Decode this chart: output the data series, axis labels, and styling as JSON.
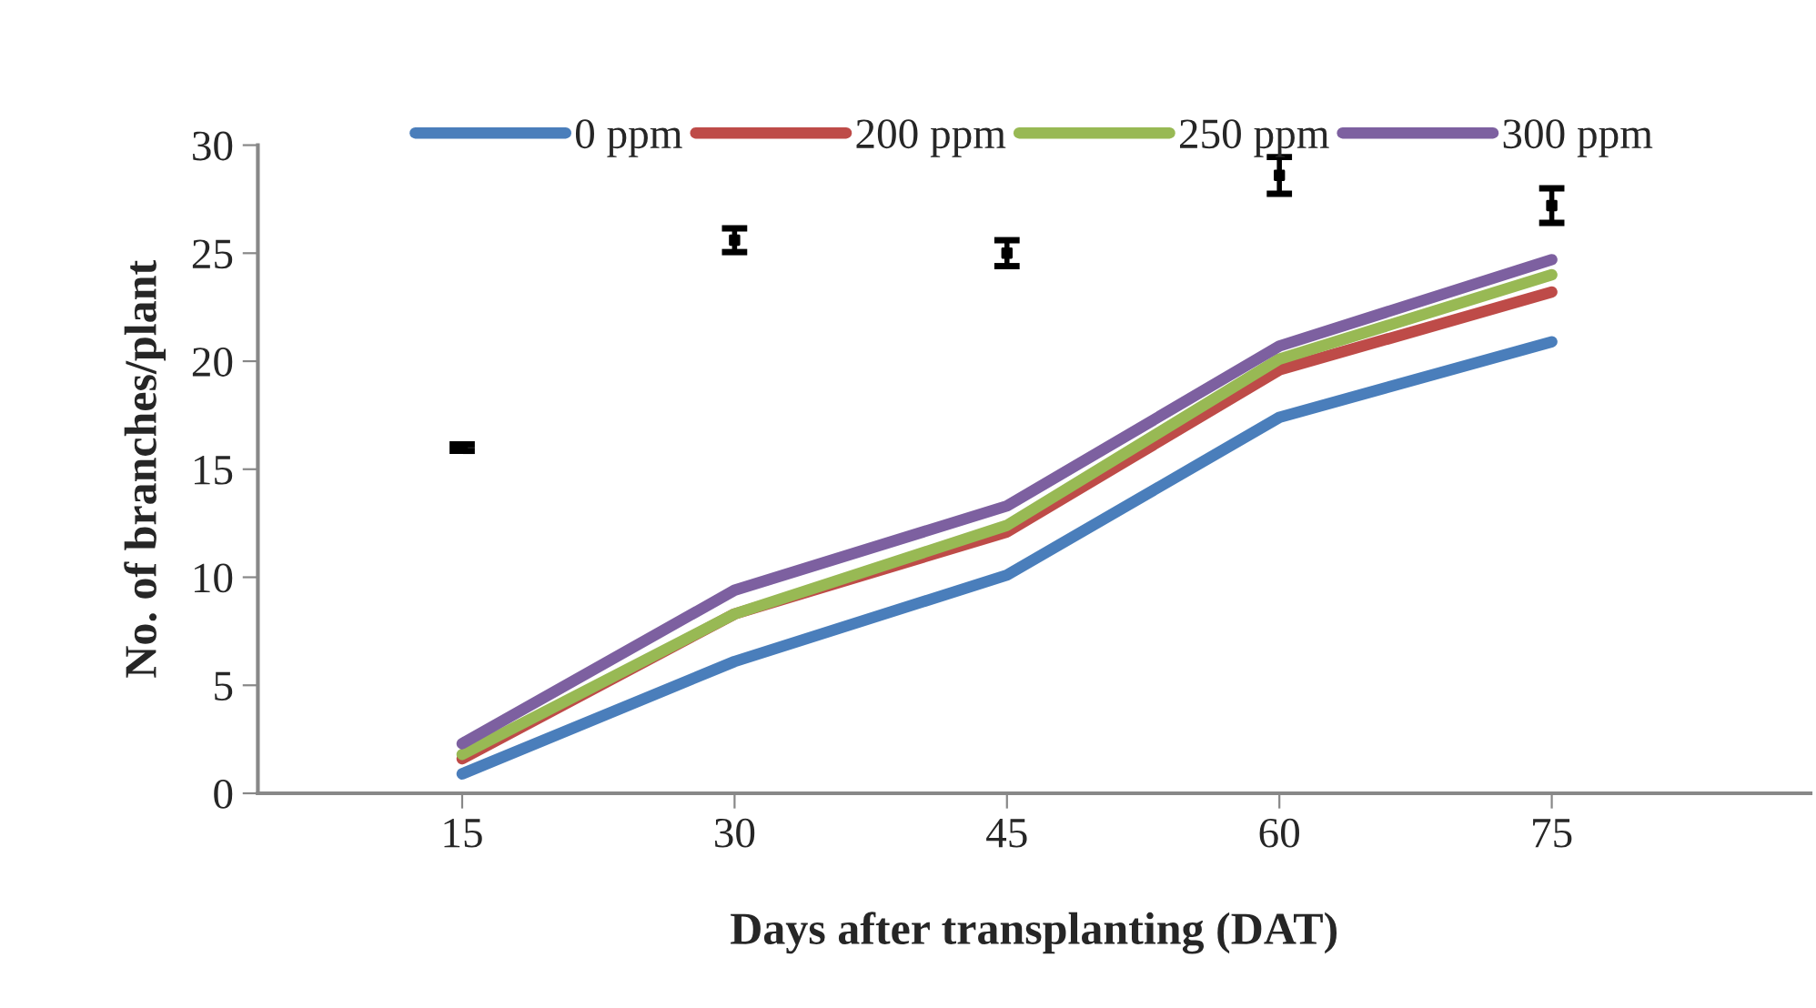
{
  "chart_data": {
    "type": "line",
    "xlabel": "Days after transplanting (DAT)",
    "ylabel": "No. of branches/plant",
    "categories": [
      "15",
      "30",
      "45",
      "60",
      "75"
    ],
    "ylim": [
      0,
      30
    ],
    "yticks": [
      0,
      5,
      10,
      15,
      20,
      25,
      30
    ],
    "grid": false,
    "legend": "top",
    "marker": "none",
    "line_style": "solid",
    "series": [
      {
        "name": "0 ppm",
        "color": "#4a7ebb",
        "values": [
          0.9,
          6.1,
          10.1,
          17.4,
          20.9
        ]
      },
      {
        "name": "200 ppm",
        "color": "#be4b48",
        "values": [
          1.6,
          8.3,
          12.1,
          19.6,
          23.2
        ]
      },
      {
        "name": "250 ppm",
        "color": "#98b954",
        "values": [
          1.8,
          8.3,
          12.4,
          20.1,
          24.0
        ]
      },
      {
        "name": "300 ppm",
        "color": "#7d60a0",
        "values": [
          2.3,
          9.4,
          13.3,
          20.7,
          24.7
        ]
      },
      {
        "type": "scatter",
        "color": "#000000",
        "marker": "square",
        "values": [
          16.0,
          25.6,
          25.0,
          28.6,
          27.2
        ],
        "errors": [
          0.15,
          0.55,
          0.6,
          0.85,
          0.8
        ]
      }
    ]
  }
}
